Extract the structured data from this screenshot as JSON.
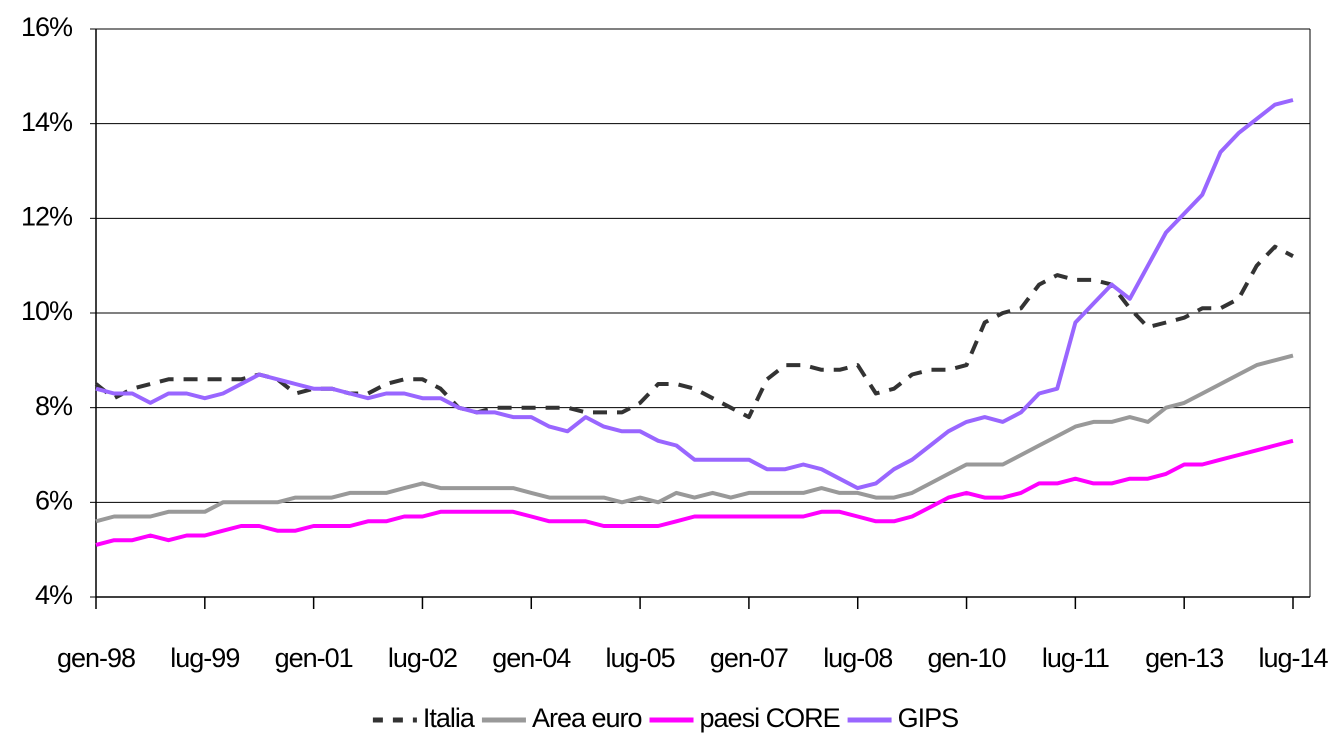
{
  "chart_data": {
    "type": "line",
    "categories": [
      "gen-98",
      null,
      null,
      null,
      null,
      null,
      "lug-99",
      null,
      null,
      null,
      null,
      null,
      "gen-01",
      null,
      null,
      null,
      null,
      null,
      "lug-02",
      null,
      null,
      null,
      null,
      null,
      "gen-04",
      null,
      null,
      null,
      null,
      null,
      "lug-05",
      null,
      null,
      null,
      null,
      null,
      "gen-07",
      null,
      null,
      null,
      null,
      null,
      "lug-08",
      null,
      null,
      null,
      null,
      null,
      "gen-10",
      null,
      null,
      null,
      null,
      null,
      "lug-11",
      null,
      null,
      null,
      null,
      null,
      "gen-13",
      null,
      null,
      null,
      null,
      null,
      "lug-14"
    ],
    "series": [
      {
        "name": "Italia",
        "color": "#333333",
        "dashed": true,
        "values": [
          8.5,
          8.2,
          8.4,
          8.5,
          8.6,
          8.6,
          8.6,
          8.6,
          8.6,
          8.7,
          8.6,
          8.3,
          8.4,
          8.4,
          8.3,
          8.3,
          8.5,
          8.6,
          8.6,
          8.4,
          8.0,
          7.9,
          8.0,
          8.0,
          8.0,
          8.0,
          8.0,
          7.9,
          7.9,
          7.9,
          8.1,
          8.5,
          8.5,
          8.4,
          8.2,
          8.0,
          7.8,
          8.6,
          8.9,
          8.9,
          8.8,
          8.8,
          8.9,
          8.3,
          8.4,
          8.7,
          8.8,
          8.8,
          8.9,
          9.8,
          10.0,
          10.1,
          10.6,
          10.8,
          10.7,
          10.7,
          10.6,
          10.1,
          9.7,
          9.8,
          9.9,
          10.1,
          10.1,
          10.3,
          11.0,
          11.4,
          11.2
        ]
      },
      {
        "name": "Area euro",
        "color": "#999999",
        "values": [
          5.6,
          5.7,
          5.7,
          5.7,
          5.8,
          5.8,
          5.8,
          6.0,
          6.0,
          6.0,
          6.0,
          6.1,
          6.1,
          6.1,
          6.2,
          6.2,
          6.2,
          6.3,
          6.4,
          6.3,
          6.3,
          6.3,
          6.3,
          6.3,
          6.2,
          6.1,
          6.1,
          6.1,
          6.1,
          6.0,
          6.1,
          6.0,
          6.2,
          6.1,
          6.2,
          6.1,
          6.2,
          6.2,
          6.2,
          6.2,
          6.3,
          6.2,
          6.2,
          6.1,
          6.1,
          6.2,
          6.4,
          6.6,
          6.8,
          6.8,
          6.8,
          7.0,
          7.2,
          7.4,
          7.6,
          7.7,
          7.7,
          7.8,
          7.7,
          8.0,
          8.1,
          8.3,
          8.5,
          8.7,
          8.9,
          9.0,
          9.1
        ]
      },
      {
        "name": "paesi CORE",
        "color": "#ff00ff",
        "values": [
          5.1,
          5.2,
          5.2,
          5.3,
          5.2,
          5.3,
          5.3,
          5.4,
          5.5,
          5.5,
          5.4,
          5.4,
          5.5,
          5.5,
          5.5,
          5.6,
          5.6,
          5.7,
          5.7,
          5.8,
          5.8,
          5.8,
          5.8,
          5.8,
          5.7,
          5.6,
          5.6,
          5.6,
          5.5,
          5.5,
          5.5,
          5.5,
          5.6,
          5.7,
          5.7,
          5.7,
          5.7,
          5.7,
          5.7,
          5.7,
          5.8,
          5.8,
          5.7,
          5.6,
          5.6,
          5.7,
          5.9,
          6.1,
          6.2,
          6.1,
          6.1,
          6.2,
          6.4,
          6.4,
          6.5,
          6.4,
          6.4,
          6.5,
          6.5,
          6.6,
          6.8,
          6.8,
          6.9,
          7.0,
          7.1,
          7.2,
          7.3
        ]
      },
      {
        "name": "GIPS",
        "color": "#9966ff",
        "values": [
          8.4,
          8.3,
          8.3,
          8.1,
          8.3,
          8.3,
          8.2,
          8.3,
          8.5,
          8.7,
          8.6,
          8.5,
          8.4,
          8.4,
          8.3,
          8.2,
          8.3,
          8.3,
          8.2,
          8.2,
          8.0,
          7.9,
          7.9,
          7.8,
          7.8,
          7.6,
          7.5,
          7.8,
          7.6,
          7.5,
          7.5,
          7.3,
          7.2,
          6.9,
          6.9,
          6.9,
          6.9,
          6.7,
          6.7,
          6.8,
          6.7,
          6.5,
          6.3,
          6.4,
          6.7,
          6.9,
          7.2,
          7.5,
          7.7,
          7.8,
          7.7,
          7.9,
          8.3,
          8.4,
          9.8,
          10.2,
          10.6,
          10.3,
          11.0,
          11.7,
          12.1,
          12.5,
          13.4,
          13.8,
          14.1,
          14.4,
          14.5
        ]
      }
    ],
    "ylim": [
      4,
      16
    ],
    "yticks": [
      {
        "value": 4,
        "label": "4%"
      },
      {
        "value": 6,
        "label": "6%"
      },
      {
        "value": 8,
        "label": "8%"
      },
      {
        "value": 10,
        "label": "10%"
      },
      {
        "value": 12,
        "label": "12%"
      },
      {
        "value": 14,
        "label": "14%"
      },
      {
        "value": 16,
        "label": "16%"
      }
    ],
    "grid": true
  }
}
